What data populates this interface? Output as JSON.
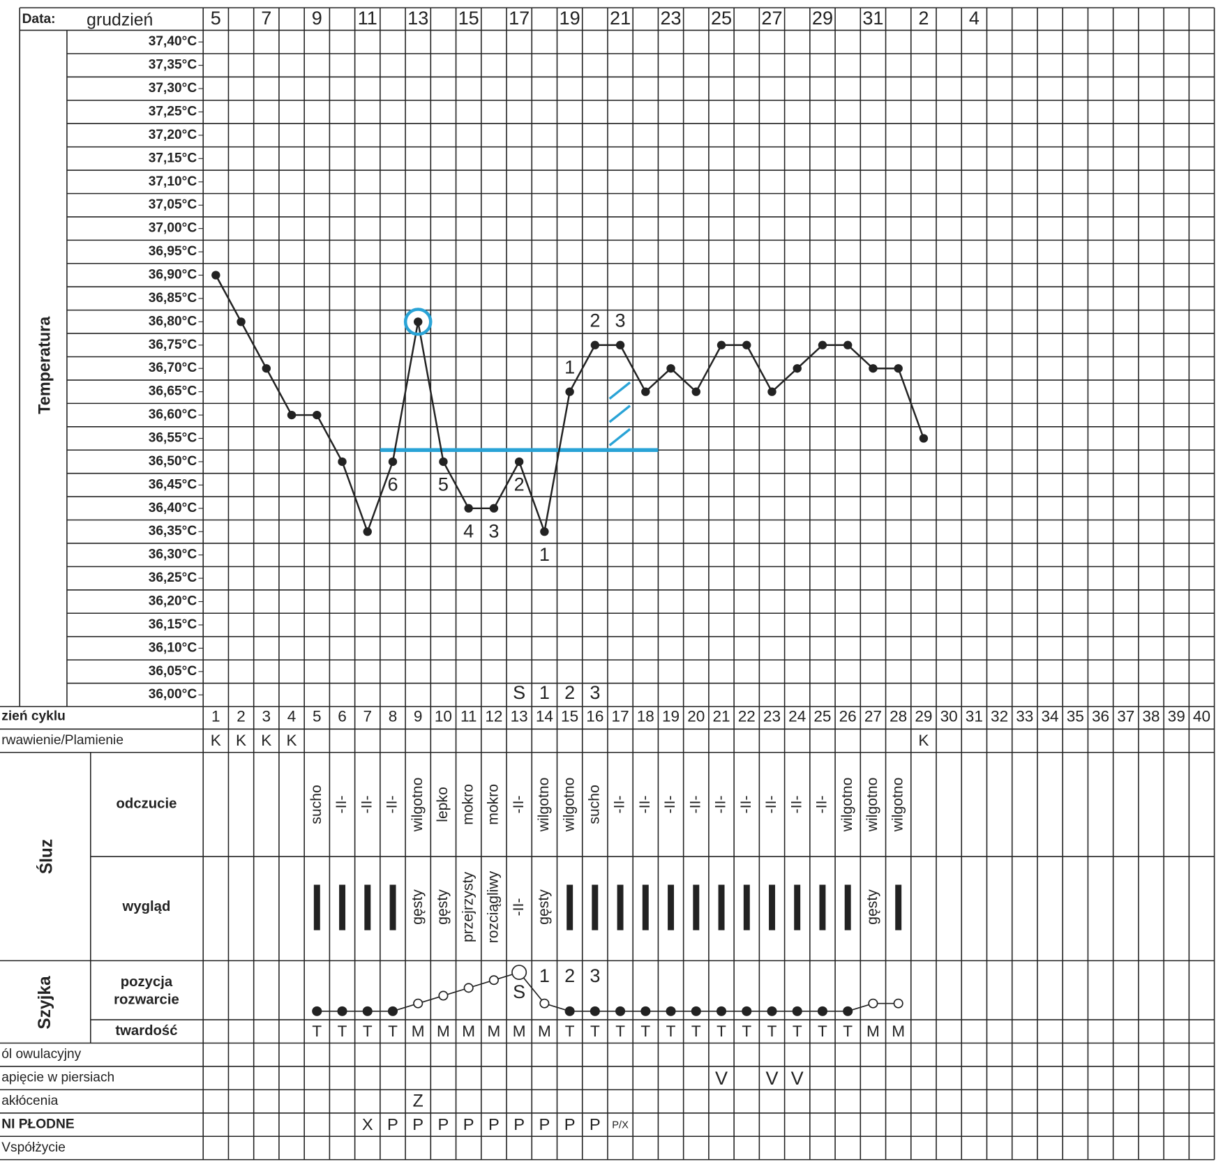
{
  "header": {
    "date_label": "Data:",
    "month": "grudzień"
  },
  "chart_data": {
    "type": "line",
    "y_axis_label": "Temperatura",
    "line_color": "#222222",
    "highlight_color": "#29a3d6",
    "dates": [
      "5",
      null,
      "7",
      null,
      "9",
      null,
      "11",
      null,
      "13",
      null,
      "15",
      null,
      "17",
      null,
      "19",
      null,
      "21",
      null,
      "23",
      null,
      "25",
      null,
      "27",
      null,
      "29",
      null,
      "31",
      null,
      "2",
      null,
      "4",
      null,
      null,
      null,
      null,
      null,
      null,
      null,
      null,
      null
    ],
    "days": [
      1,
      2,
      3,
      4,
      5,
      6,
      7,
      8,
      9,
      10,
      11,
      12,
      13,
      14,
      15,
      16,
      17,
      18,
      19,
      20,
      21,
      22,
      23,
      24,
      25,
      26,
      27,
      28,
      29,
      30,
      31,
      32,
      33,
      34,
      35,
      36,
      37,
      38,
      39,
      40
    ],
    "ylim": [
      35.975,
      37.425
    ],
    "yticks": [
      {
        "value": 37.4,
        "label": "37,40°C"
      },
      {
        "value": 37.35,
        "label": "37,35°C"
      },
      {
        "value": 37.3,
        "label": "37,30°C"
      },
      {
        "value": 37.25,
        "label": "37,25°C"
      },
      {
        "value": 37.2,
        "label": "37,20°C"
      },
      {
        "value": 37.15,
        "label": "37,15°C"
      },
      {
        "value": 37.1,
        "label": "37,10°C"
      },
      {
        "value": 37.05,
        "label": "37,05°C"
      },
      {
        "value": 37.0,
        "label": "37,00°C"
      },
      {
        "value": 36.95,
        "label": "36,95°C"
      },
      {
        "value": 36.9,
        "label": "36,90°C"
      },
      {
        "value": 36.85,
        "label": "36,85°C"
      },
      {
        "value": 36.8,
        "label": "36,80°C"
      },
      {
        "value": 36.75,
        "label": "36,75°C"
      },
      {
        "value": 36.7,
        "label": "36,70°C"
      },
      {
        "value": 36.65,
        "label": "36,65°C"
      },
      {
        "value": 36.6,
        "label": "36,60°C"
      },
      {
        "value": 36.55,
        "label": "36,55°C"
      },
      {
        "value": 36.5,
        "label": "36,50°C"
      },
      {
        "value": 36.45,
        "label": "36,45°C"
      },
      {
        "value": 36.4,
        "label": "36,40°C"
      },
      {
        "value": 36.35,
        "label": "36,35°C"
      },
      {
        "value": 36.3,
        "label": "36,30°C"
      },
      {
        "value": 36.25,
        "label": "36,25°C"
      },
      {
        "value": 36.2,
        "label": "36,20°C"
      },
      {
        "value": 36.15,
        "label": "36,15°C"
      },
      {
        "value": 36.1,
        "label": "36,10°C"
      },
      {
        "value": 36.05,
        "label": "36,05°C"
      },
      {
        "value": 36.0,
        "label": "36,00°C"
      }
    ],
    "temperatures": [
      36.9,
      36.8,
      36.7,
      36.6,
      36.6,
      36.5,
      36.35,
      36.5,
      36.8,
      36.5,
      36.4,
      36.4,
      36.5,
      36.35,
      36.65,
      36.75,
      36.75,
      36.65,
      36.7,
      36.65,
      36.75,
      36.75,
      36.65,
      36.7,
      36.75,
      36.75,
      36.7,
      36.7,
      36.55,
      null,
      null,
      null,
      null,
      null,
      null,
      null,
      null,
      null,
      null,
      null
    ],
    "circle_day": 9,
    "coverline": {
      "value": 36.525,
      "from": 7.5,
      "to": 18.5
    },
    "low_marks": [
      null,
      null,
      null,
      null,
      null,
      null,
      null,
      "6",
      null,
      "5",
      "4",
      "3",
      "2",
      "1",
      null,
      null,
      null,
      null,
      null,
      null,
      null,
      null,
      null,
      null,
      null,
      null,
      null,
      null,
      null,
      null,
      null,
      null,
      null,
      null,
      null,
      null,
      null,
      null,
      null,
      null
    ],
    "high_marks": [
      null,
      null,
      null,
      null,
      null,
      null,
      null,
      null,
      null,
      null,
      null,
      null,
      null,
      null,
      "1",
      "2",
      "3",
      null,
      null,
      null,
      null,
      null,
      null,
      null,
      null,
      null,
      null,
      null,
      null,
      null,
      null,
      null,
      null,
      null,
      null,
      null,
      null,
      null,
      null,
      null
    ],
    "peak_marks": [
      null,
      null,
      null,
      null,
      null,
      null,
      null,
      null,
      null,
      null,
      null,
      null,
      "S",
      "1",
      "2",
      "3",
      null,
      null,
      null,
      null,
      null,
      null,
      null,
      null,
      null,
      null,
      null,
      null,
      null,
      null,
      null,
      null,
      null,
      null,
      null,
      null,
      null,
      null,
      null,
      null
    ],
    "bleeding": [
      "K",
      "K",
      "K",
      "K",
      null,
      null,
      null,
      null,
      null,
      null,
      null,
      null,
      null,
      null,
      null,
      null,
      null,
      null,
      null,
      null,
      null,
      null,
      null,
      null,
      null,
      null,
      null,
      null,
      "K",
      null,
      null,
      null,
      null,
      null,
      null,
      null,
      null,
      null,
      null,
      null
    ],
    "feeling": [
      null,
      null,
      null,
      null,
      "sucho",
      "-II-",
      "-II-",
      "-II-",
      "wilgotno",
      "lepko",
      "mokro",
      "mokro",
      "-II-",
      "wilgotno",
      "wilgotno",
      "sucho",
      "-II-",
      "-II-",
      "-II-",
      "-II-",
      "-II-",
      "-II-",
      "-II-",
      "-II-",
      "-II-",
      "wilgotno",
      "wilgotno",
      "wilgotno",
      null,
      null,
      null,
      null,
      null,
      null,
      null,
      null,
      null,
      null,
      null,
      null
    ],
    "appearance": [
      null,
      null,
      null,
      null,
      "|",
      "|",
      "|",
      "|",
      "gęsty",
      "gęsty",
      "przejrzysty",
      "rozciągliwy",
      "-II-",
      "gęsty",
      "|",
      "|",
      "|",
      "|",
      "|",
      "|",
      "|",
      "|",
      "|",
      "|",
      "|",
      "|",
      "gęsty",
      "|",
      null,
      null,
      null,
      null,
      null,
      null,
      null,
      null,
      null,
      null,
      null,
      null
    ],
    "cervix_position": [
      null,
      null,
      null,
      null,
      0,
      0,
      0,
      0,
      1,
      2,
      3,
      4,
      5,
      1,
      0,
      0,
      0,
      0,
      0,
      0,
      0,
      0,
      0,
      0,
      0,
      0,
      1,
      1,
      null,
      null,
      null,
      null,
      null,
      null,
      null,
      null,
      null,
      null,
      null,
      null
    ],
    "firmness": [
      null,
      null,
      null,
      null,
      "T",
      "T",
      "T",
      "T",
      "M",
      "M",
      "M",
      "M",
      "M",
      "M",
      "T",
      "T",
      "T",
      "T",
      "T",
      "T",
      "T",
      "T",
      "T",
      "T",
      "T",
      "T",
      "M",
      "M",
      null,
      null,
      null,
      null,
      null,
      null,
      null,
      null,
      null,
      null,
      null,
      null
    ],
    "breast": [
      null,
      null,
      null,
      null,
      null,
      null,
      null,
      null,
      null,
      null,
      null,
      null,
      null,
      null,
      null,
      null,
      null,
      null,
      null,
      null,
      "V",
      null,
      "V",
      "V",
      null,
      null,
      null,
      null,
      null,
      null,
      null,
      null,
      null,
      null,
      null,
      null,
      null,
      null,
      null,
      null
    ],
    "disturbances": [
      null,
      null,
      null,
      null,
      null,
      null,
      null,
      null,
      "Z",
      null,
      null,
      null,
      null,
      null,
      null,
      null,
      null,
      null,
      null,
      null,
      null,
      null,
      null,
      null,
      null,
      null,
      null,
      null,
      null,
      null,
      null,
      null,
      null,
      null,
      null,
      null,
      null,
      null,
      null,
      null
    ],
    "fertile": [
      null,
      null,
      null,
      null,
      null,
      null,
      "X",
      "P",
      "P",
      "P",
      "P",
      "P",
      "P",
      "P",
      "P",
      "P",
      "P/X",
      null,
      null,
      null,
      null,
      null,
      null,
      null,
      null,
      null,
      null,
      null,
      null,
      null,
      null,
      null,
      null,
      null,
      null,
      null,
      null,
      null,
      null,
      null
    ],
    "labels": {
      "days": "zień cyklu",
      "bleeding": "rwawienie/Plamienie",
      "mucus": "Śluz",
      "feeling": "odczucie",
      "appearance": "wygląd",
      "cervix": "Szyjka",
      "position": "pozycja",
      "opening": "rozwarcie",
      "firmness": "twardość",
      "pain": "ól owulacyjny",
      "breast": "apięcie w piersiach",
      "disturbances": "akłócenia",
      "fertile": "NI PŁODNE",
      "intercourse": "Vspółżycie"
    }
  }
}
